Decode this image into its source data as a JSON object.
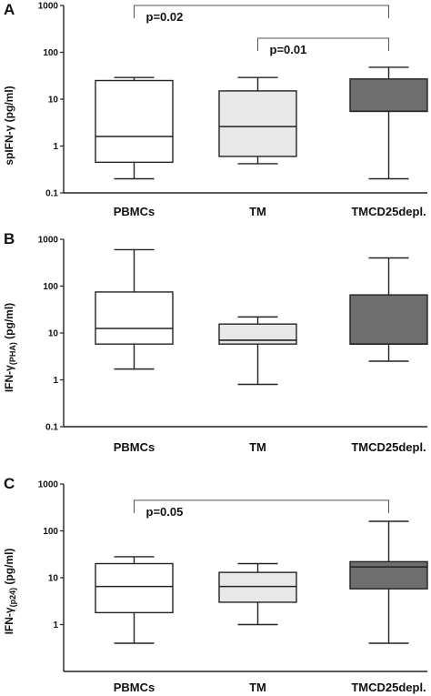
{
  "figure": {
    "panels": [
      {
        "letter": "A",
        "ylabel_main": "spIFN-γ (pg/ml)",
        "ylabel_sub": ""
      },
      {
        "letter": "B",
        "ylabel_main": "IFN-γ",
        "ylabel_sub": "(PHA)",
        "ylabel_end": " (pg/ml)"
      },
      {
        "letter": "C",
        "ylabel_main": "IFN-γ",
        "ylabel_sub": "(p24)",
        "ylabel_end": "  (pg/ml)"
      }
    ]
  },
  "colors": {
    "PBMCs": "#ffffff",
    "TM": "#e8e8e8",
    "TMCD25depl.": "#6e6e6e",
    "stroke": "#222222"
  },
  "chart_data": [
    {
      "type": "box",
      "panel": "A",
      "y_scale": "log",
      "ylim": [
        0.1,
        1000
      ],
      "y_ticks": [
        "0.1",
        "1",
        "10",
        "100",
        "1000"
      ],
      "categories": [
        "PBMCs",
        "TM",
        "TMCD25depl."
      ],
      "boxes": [
        {
          "min": 0.2,
          "q1": 0.45,
          "median": 1.6,
          "q3": 25,
          "max": 29
        },
        {
          "min": 0.42,
          "q1": 0.6,
          "median": 2.6,
          "q3": 15,
          "max": 29
        },
        {
          "min": 0.2,
          "q1": 5.5,
          "median": 5.5,
          "q3": 27,
          "max": 48
        }
      ],
      "annotations": [
        {
          "from": "PBMCs",
          "to": "TMCD25depl.",
          "text": "p=0.02",
          "y": 1000
        },
        {
          "from": "TM",
          "to": "TMCD25depl.",
          "text": "p=0.01",
          "y": 200
        }
      ]
    },
    {
      "type": "box",
      "panel": "B",
      "y_scale": "log",
      "ylim": [
        0.1,
        1000
      ],
      "y_ticks": [
        "0.1",
        "1",
        "10",
        "100",
        "1000"
      ],
      "categories": [
        "PBMCs",
        "TM",
        "TMCD25depl."
      ],
      "boxes": [
        {
          "min": 1.7,
          "q1": 5.8,
          "median": 12.5,
          "q3": 75,
          "max": 600
        },
        {
          "min": 0.8,
          "q1": 5.8,
          "median": 7,
          "q3": 15.5,
          "max": 22
        },
        {
          "min": 2.5,
          "q1": 5.8,
          "median": 5.8,
          "q3": 65,
          "max": 400
        }
      ],
      "annotations": []
    },
    {
      "type": "box",
      "panel": "C",
      "y_scale": "log",
      "ylim": [
        0.1,
        1000
      ],
      "y_ticks": [
        "1",
        "10",
        "100",
        "1000"
      ],
      "categories": [
        "PBMCs",
        "TM",
        "TMCD25depl."
      ],
      "boxes": [
        {
          "min": 0.4,
          "q1": 1.8,
          "median": 6.5,
          "q3": 20,
          "max": 28
        },
        {
          "min": 1.0,
          "q1": 3.0,
          "median": 6.5,
          "q3": 13,
          "max": 20
        },
        {
          "min": 0.4,
          "q1": 5.8,
          "median": 17,
          "q3": 22,
          "max": 160
        }
      ],
      "annotations": [
        {
          "from": "PBMCs",
          "to": "TMCD25depl.",
          "text": "p=0.05",
          "y": 450
        }
      ]
    }
  ]
}
